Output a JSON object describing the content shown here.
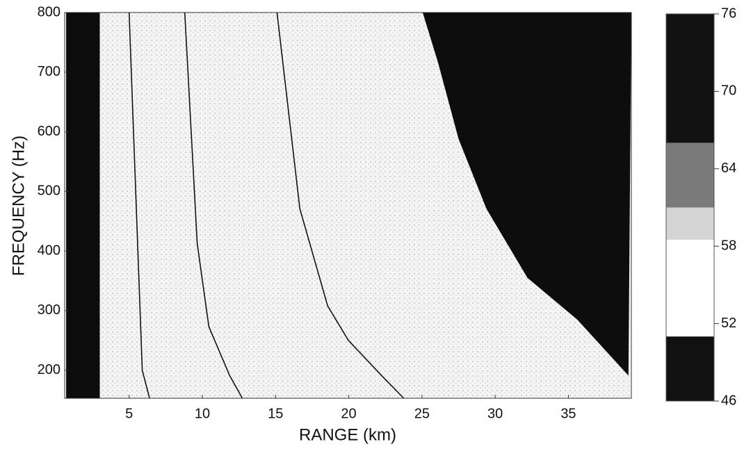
{
  "chart_data": {
    "type": "contour",
    "x_label": "RANGE (km)",
    "y_label": "FREQUENCY (Hz)",
    "xlim": [
      0.6,
      39.3
    ],
    "ylim": [
      153,
      800
    ],
    "xticks": [
      5,
      10,
      15,
      20,
      25,
      30,
      35
    ],
    "yticks": [
      200,
      300,
      400,
      500,
      600,
      700,
      800
    ],
    "regions": [
      {
        "color": "#0d0d0d",
        "x": [
          0.7,
          3.0,
          3.0,
          0.7
        ],
        "y": [
          153,
          153,
          800,
          800
        ]
      },
      {
        "color": "#0d0d0d",
        "x": [
          25.05,
          26.1,
          27.5,
          29.4,
          32.2,
          35.6,
          39.1,
          39.3
        ],
        "y": [
          800,
          716,
          588,
          471,
          355,
          285,
          191,
          800
        ]
      }
    ],
    "series": [
      {
        "color": "#111111",
        "x": [
          5.0,
          5.3,
          5.6,
          5.9,
          6.4
        ],
        "y": [
          800,
          600,
          400,
          200,
          153
        ]
      },
      {
        "color": "#111111",
        "x": [
          8.8,
          9.65,
          10.45,
          11.87,
          12.73
        ],
        "y": [
          800,
          413,
          273,
          191,
          153
        ]
      },
      {
        "color": "#111111",
        "x": [
          15.1,
          16.66,
          18.56,
          19.98,
          22.25,
          23.76
        ],
        "y": [
          800,
          471,
          308,
          250,
          191,
          153
        ]
      }
    ],
    "colorbar": {
      "clim": [
        46,
        76
      ],
      "ticks": [
        46,
        52,
        58,
        64,
        70,
        76
      ],
      "bands": [
        {
          "from": 66,
          "to": 76,
          "color": "#111111"
        },
        {
          "from": 61,
          "to": 66,
          "color": "#7a7a7a"
        },
        {
          "from": 58.5,
          "to": 61,
          "color": "#d4d4d4"
        },
        {
          "from": 51,
          "to": 58.5,
          "color": "#ffffff"
        },
        {
          "from": 46,
          "to": 51,
          "color": "#111111"
        }
      ]
    }
  }
}
